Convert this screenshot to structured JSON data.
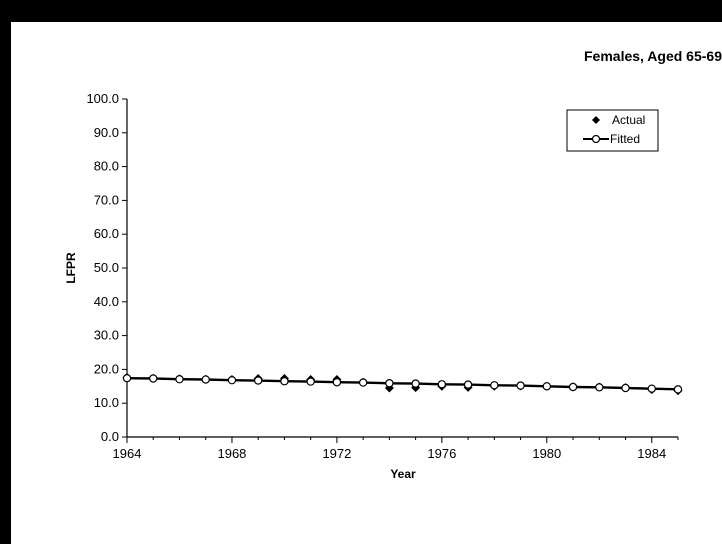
{
  "chart_data": {
    "type": "line",
    "title": "Females, Aged 65-69",
    "xlabel": "Year",
    "ylabel": "LFPR",
    "xlim": [
      1964,
      1985
    ],
    "ylim": [
      0,
      100
    ],
    "x_ticks": [
      1964,
      1968,
      1972,
      1976,
      1980,
      1984
    ],
    "y_ticks": [
      "0.0",
      "10.0",
      "20.0",
      "30.0",
      "40.0",
      "50.0",
      "60.0",
      "70.0",
      "80.0",
      "90.0",
      "100.0"
    ],
    "legend_position": "top-right",
    "grid": false,
    "x": [
      1964,
      1965,
      1966,
      1967,
      1968,
      1969,
      1970,
      1971,
      1972,
      1973,
      1974,
      1975,
      1976,
      1977,
      1978,
      1979,
      1980,
      1981,
      1982,
      1983,
      1984,
      1985
    ],
    "series": [
      {
        "name": "Actual",
        "style": "markers",
        "marker": "filled-diamond",
        "values": [
          17.6,
          17.4,
          17.2,
          17.1,
          17.0,
          17.3,
          17.3,
          17.0,
          17.0,
          16.2,
          14.5,
          14.6,
          15.0,
          14.7,
          15.0,
          15.1,
          15.0,
          14.8,
          14.8,
          14.6,
          14.0,
          13.7
        ]
      },
      {
        "name": "Fitted",
        "style": "line-markers",
        "marker": "open-circle",
        "values": [
          17.4,
          17.3,
          17.1,
          17.0,
          16.8,
          16.7,
          16.5,
          16.4,
          16.2,
          16.1,
          15.9,
          15.8,
          15.6,
          15.5,
          15.3,
          15.2,
          15.0,
          14.8,
          14.7,
          14.5,
          14.3,
          14.1
        ]
      }
    ]
  }
}
